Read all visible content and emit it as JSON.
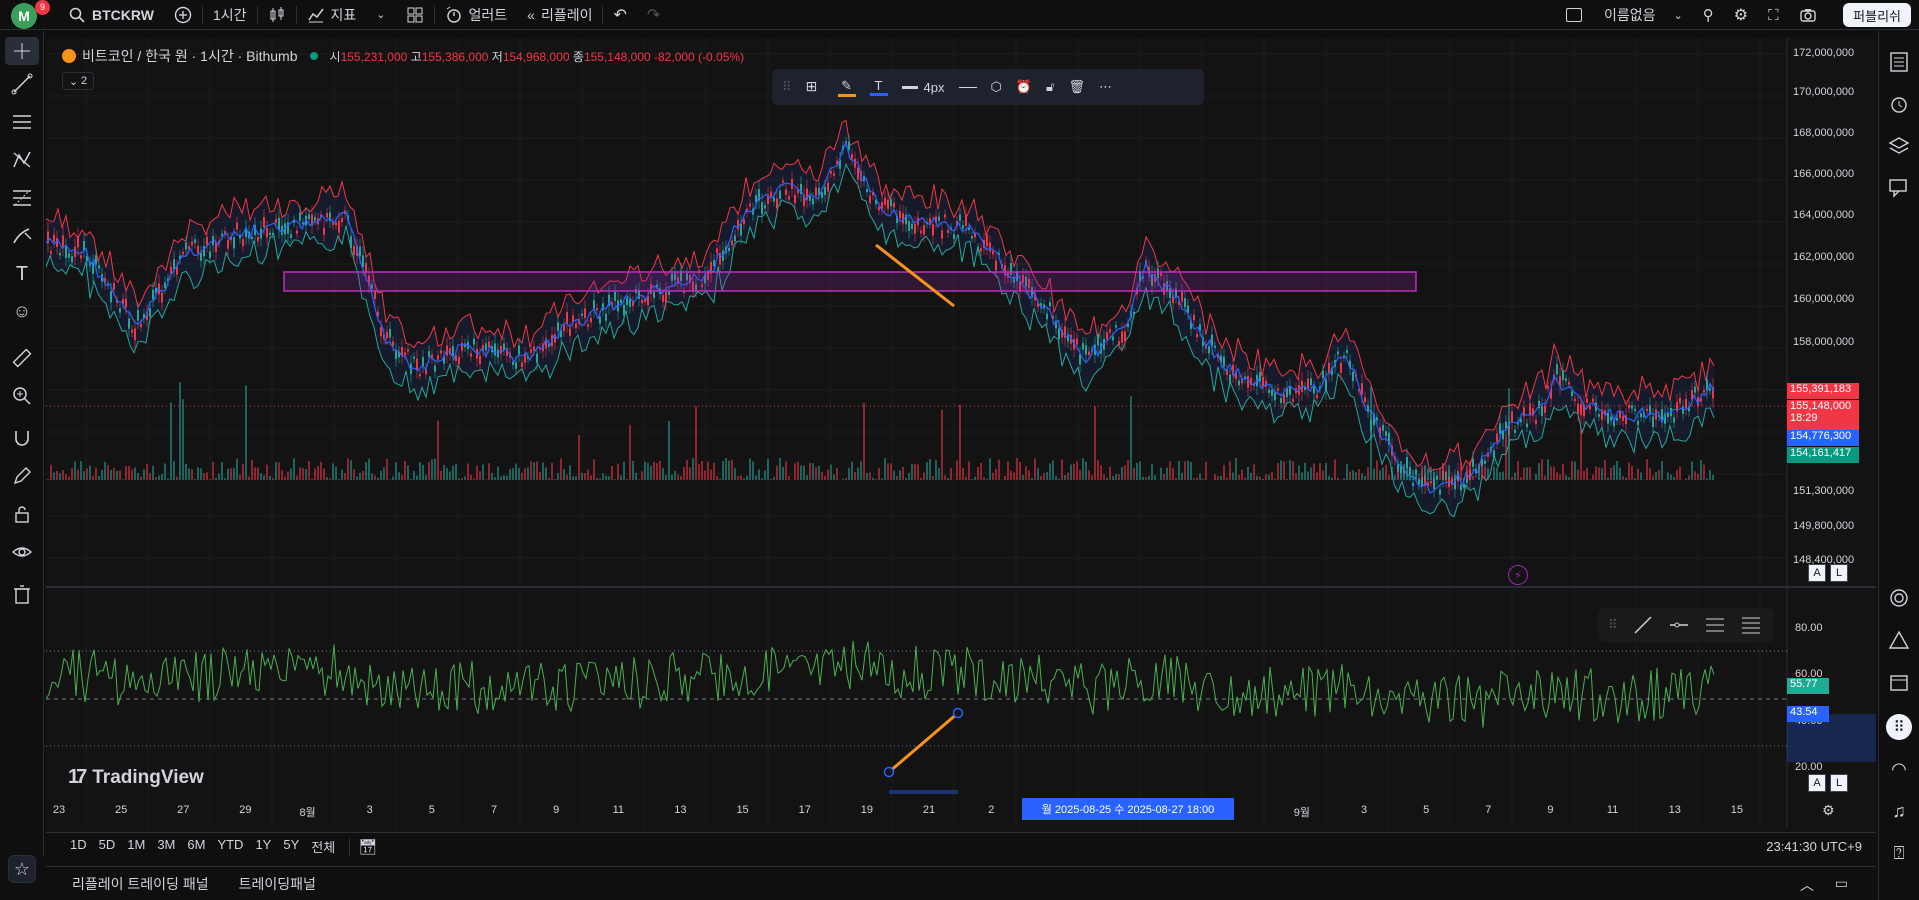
{
  "topbar": {
    "avatar_letter": "M",
    "avatar_badge": "9",
    "symbol": "BTCKRW",
    "interval": "1시간",
    "indicators_label": "지표",
    "alert_label": "얼러트",
    "replay_label": "리플레이",
    "layout_name": "이름없음",
    "publish_label": "퍼블리쉬"
  },
  "legend": {
    "title": "비트코인 / 한국 원 · 1시간 · Bithumb",
    "open_label": "시",
    "open": "155,231,000",
    "high_label": "고",
    "high": "155,386,000",
    "low_label": "저",
    "low": "154,968,000",
    "close_label": "종",
    "close": "155,148,000",
    "change": "-82,000 (-0.05%)",
    "collapsed_count": "2"
  },
  "drawbar": {
    "width_label": "4px"
  },
  "price_axis": [
    "172,000,000",
    "170,000,000",
    "168,000,000",
    "166,000,000",
    "164,000,000",
    "162,000,000",
    "160,000,000",
    "158,000,000",
    "151,300,000",
    "149,800,000",
    "148,400,000"
  ],
  "price_tags": {
    "bb_upper": "155,391,183",
    "last_price": "155,148,000",
    "countdown": "18:29",
    "bb_basis": "154,776,300",
    "bb_lower": "154,161,417"
  },
  "rsi_axis": [
    "80.00",
    "60.00",
    "40.00",
    "20.00"
  ],
  "rsi_tags": {
    "rsi": "55.77",
    "rsi_ma": "43.54"
  },
  "time_axis": [
    "23",
    "25",
    "27",
    "29",
    "8월",
    "3",
    "5",
    "7",
    "9",
    "11",
    "13",
    "15",
    "17",
    "19",
    "21",
    "2",
    "",
    "",
    "",
    "",
    "9월",
    "3",
    "5",
    "7",
    "9",
    "11",
    "13",
    "15"
  ],
  "crosshair_time": "월 2025-08-25  수 2025-08-27   18:00",
  "brand": "TradingView",
  "ranges": [
    "1D",
    "5D",
    "1M",
    "3M",
    "6M",
    "YTD",
    "1Y",
    "5Y",
    "전체"
  ],
  "clock": "23:41:30 UTC+9",
  "bottom_tabs": [
    "리플레이 트레이딩 패널",
    "트레이딩패널"
  ],
  "colors": {
    "up": "#26a69a",
    "down": "#f23645",
    "bb_upper": "#f23645",
    "bb_lower": "#26a69a",
    "bb_basis": "#2962ff",
    "zone": "#c02cc0",
    "trendline": "#f7931a",
    "rsi": "#4caf50"
  },
  "icons": [
    "search-icon",
    "add-icon",
    "candles-icon",
    "indicator-icon",
    "layout-icon",
    "alert-icon",
    "replay-icon",
    "undo-icon",
    "redo-icon",
    "camera-icon",
    "fullscreen-icon",
    "settings-icon"
  ]
}
